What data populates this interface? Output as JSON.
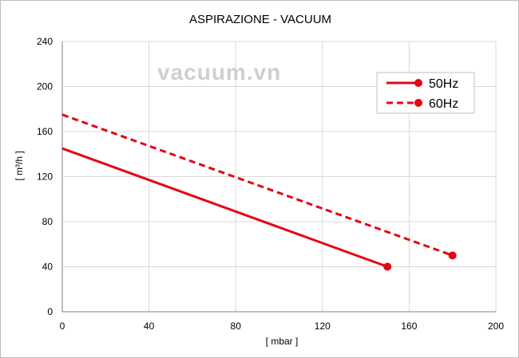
{
  "watermark": "vacuum.vn",
  "chart_data": {
    "type": "line",
    "title": "ASPIRAZIONE - VACUUM",
    "xlabel": "[ mbar ]",
    "ylabel": "[ m³/h ]",
    "xlim": [
      0,
      200
    ],
    "ylim": [
      0,
      240
    ],
    "xticks": [
      0,
      40,
      80,
      120,
      160,
      200
    ],
    "yticks": [
      0,
      40,
      80,
      120,
      160,
      200,
      240
    ],
    "grid": true,
    "legend_position": "top-right",
    "series": [
      {
        "name": "50Hz",
        "style": "solid",
        "color": "#e30613",
        "x": [
          0,
          150
        ],
        "y": [
          145,
          40
        ]
      },
      {
        "name": "60Hz",
        "style": "dashed",
        "color": "#e30613",
        "x": [
          0,
          180
        ],
        "y": [
          175,
          50
        ]
      }
    ]
  }
}
